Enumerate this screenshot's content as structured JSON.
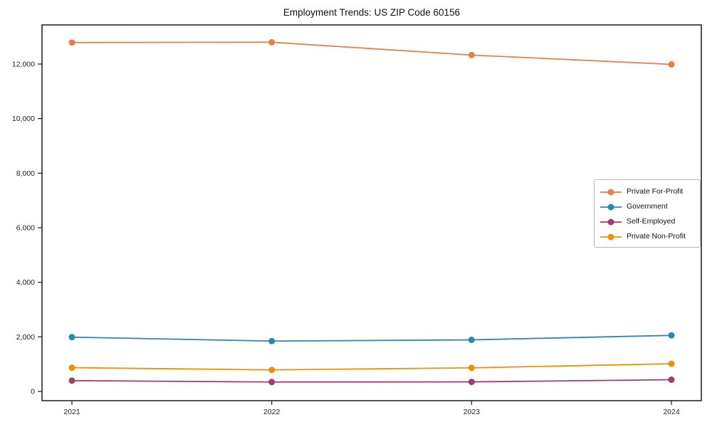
{
  "chart_data": {
    "type": "line",
    "title": "Employment Trends: US ZIP Code 60156",
    "x_categories": [
      "2021",
      "2022",
      "2023",
      "2024"
    ],
    "series": [
      {
        "name": "Private For-Profit",
        "color": "#E87D4D",
        "values": [
          12790,
          12800,
          12330,
          11990
        ]
      },
      {
        "name": "Government",
        "color": "#2E86AB",
        "values": [
          1990,
          1845,
          1890,
          2055
        ]
      },
      {
        "name": "Self-Employed",
        "color": "#A23B72",
        "values": [
          395,
          345,
          350,
          430
        ]
      },
      {
        "name": "Private Non-Profit",
        "color": "#F18F01",
        "values": [
          870,
          790,
          865,
          1015
        ]
      }
    ],
    "xlabel": "",
    "ylabel": "",
    "yticks": [
      0,
      2000,
      4000,
      6000,
      8000,
      10000,
      12000
    ],
    "ytick_labels": [
      "0",
      "2,000",
      "4,000",
      "6,000",
      "8,000",
      "10,000",
      "12,000"
    ],
    "ylim": [
      -340,
      13435
    ],
    "grid": false,
    "legend_position": "center-right",
    "frame_color": "#1a1a1a",
    "marker": "circle",
    "marker_radius": 4.5,
    "line_width": 1.8
  }
}
